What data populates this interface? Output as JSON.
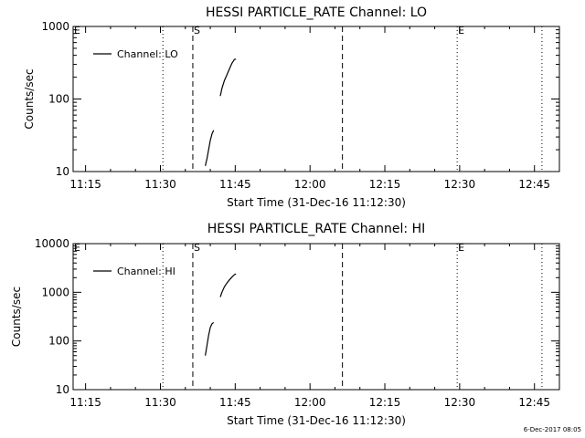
{
  "footer_timestamp": "6-Dec-2017 08:05",
  "colors": {
    "background": "#ffffff",
    "foreground": "#000000"
  },
  "chart_data": [
    {
      "type": "line",
      "title": "HESSI PARTICLE_RATE Channel: LO",
      "xlabel": "Start Time (31-Dec-16 11:12:30)",
      "ylabel": "Counts/sec",
      "y_scale": "log",
      "ylim": [
        10,
        1000
      ],
      "xlim": [
        "11:12:30",
        "12:50:00"
      ],
      "x_ticks": [
        "11:15",
        "11:30",
        "11:45",
        "12:00",
        "12:15",
        "12:30",
        "12:45"
      ],
      "y_ticks": [
        "10",
        "100",
        "1000"
      ],
      "grid": false,
      "legend": {
        "position": "top-left",
        "entries": [
          "Channel: LO"
        ]
      },
      "series": [
        {
          "name": "Channel: LO",
          "segments": [
            [
              [
                "11:39:00",
                12
              ],
              [
                "11:39:20",
                15
              ],
              [
                "11:39:40",
                20
              ],
              [
                "11:40:00",
                27
              ],
              [
                "11:40:20",
                33
              ],
              [
                "11:40:40",
                37
              ]
            ],
            [
              [
                "11:42:00",
                110
              ],
              [
                "11:42:20",
                140
              ],
              [
                "11:42:50",
                180
              ],
              [
                "11:43:20",
                215
              ],
              [
                "11:43:50",
                260
              ],
              [
                "11:44:20",
                310
              ],
              [
                "11:44:50",
                350
              ],
              [
                "11:45:10",
                355
              ]
            ]
          ]
        }
      ],
      "vlines": [
        {
          "x": "11:30:30",
          "style": "dotted"
        },
        {
          "x": "11:36:30",
          "style": "dashed",
          "label": "S"
        },
        {
          "x": "12:06:30",
          "style": "dashed"
        },
        {
          "x": "12:29:30",
          "style": "dotted",
          "label": "E"
        },
        {
          "x": "12:46:30",
          "style": "dotted"
        }
      ],
      "edge_label": "E"
    },
    {
      "type": "line",
      "title": "HESSI PARTICLE_RATE Channel: HI",
      "xlabel": "Start Time (31-Dec-16 11:12:30)",
      "ylabel": "Counts/sec",
      "y_scale": "log",
      "ylim": [
        10,
        10000
      ],
      "xlim": [
        "11:12:30",
        "12:50:00"
      ],
      "x_ticks": [
        "11:15",
        "11:30",
        "11:45",
        "12:00",
        "12:15",
        "12:30",
        "12:45"
      ],
      "y_ticks": [
        "10",
        "100",
        "1000",
        "10000"
      ],
      "grid": false,
      "legend": {
        "position": "top-left",
        "entries": [
          "Channel: HI"
        ]
      },
      "series": [
        {
          "name": "Channel: HI",
          "segments": [
            [
              [
                "11:39:00",
                50
              ],
              [
                "11:39:20",
                80
              ],
              [
                "11:39:40",
                130
              ],
              [
                "11:40:00",
                190
              ],
              [
                "11:40:20",
                225
              ],
              [
                "11:40:40",
                240
              ]
            ],
            [
              [
                "11:42:00",
                800
              ],
              [
                "11:42:20",
                1000
              ],
              [
                "11:42:50",
                1300
              ],
              [
                "11:43:20",
                1550
              ],
              [
                "11:43:50",
                1800
              ],
              [
                "11:44:20",
                2050
              ],
              [
                "11:44:50",
                2300
              ],
              [
                "11:45:10",
                2380
              ]
            ]
          ]
        }
      ],
      "vlines": [
        {
          "x": "11:30:30",
          "style": "dotted"
        },
        {
          "x": "11:36:30",
          "style": "dashed",
          "label": "S"
        },
        {
          "x": "12:06:30",
          "style": "dashed"
        },
        {
          "x": "12:29:30",
          "style": "dotted",
          "label": "E"
        },
        {
          "x": "12:46:30",
          "style": "dotted"
        }
      ],
      "edge_label": "E"
    }
  ]
}
